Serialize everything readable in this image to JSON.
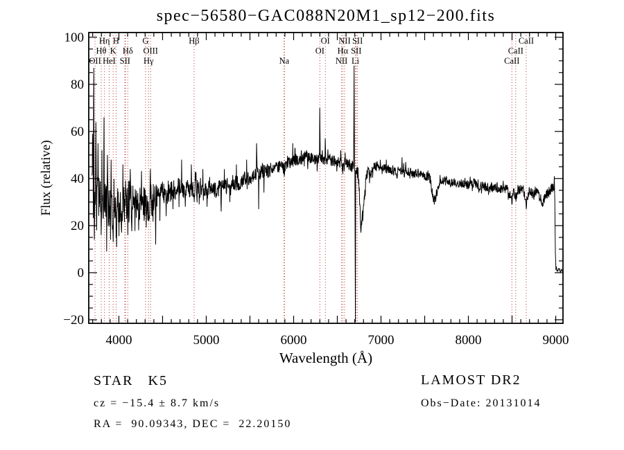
{
  "title": "spec−56580−GAC088N20M1_sp12−200.fits",
  "footer": {
    "class_label": "STAR   K5",
    "cz": "cz = −15.4 ± 8.7 km/s",
    "radec": "RA =  90.09343, DEC =  22.20150",
    "survey": "LAMOST DR2",
    "obs_date": "Obs−Date: 20131014"
  },
  "chart_data": {
    "type": "line",
    "title": "spec−56580−GAC088N20M1_sp12−200.fits",
    "xlabel": "Wavelength (Å)",
    "ylabel": "Flux (relative)",
    "xlim": [
      3655,
      9083
    ],
    "ylim": [
      -21.5,
      102
    ],
    "x_labeled_ticks": [
      4000,
      5000,
      6000,
      7000,
      8000,
      9000
    ],
    "x_tick_labels": [
      "4000",
      "5000",
      "6000",
      "7000",
      "8000",
      "9000"
    ],
    "y_labeled_ticks": [
      -20,
      0,
      20,
      40,
      60,
      80,
      100
    ],
    "y_tick_labels": [
      "−20",
      "0",
      "20",
      "40",
      "60",
      "80",
      "100"
    ],
    "x_minor_step": 100,
    "x_major_step": 500,
    "y_minor_step": 5,
    "y_major_step": 20,
    "grid": false,
    "legend": false,
    "curve_color": "#000000",
    "line_marker_color": "#b22222",
    "spectral_lines": {
      "dotted_wavelengths": [
        3727,
        3798,
        3835,
        3889,
        3934,
        3968,
        4068,
        4076,
        4102,
        4305,
        4340,
        4363,
        4861,
        5890,
        5896,
        6300,
        6363,
        6548,
        6563,
        6583,
        6707,
        6716,
        6731,
        8498,
        8542,
        8662
      ],
      "labels": [
        {
          "text": "Hη",
          "row": 1,
          "wavelength": 3835
        },
        {
          "text": "H",
          "row": 1,
          "wavelength": 3968
        },
        {
          "text": "G",
          "row": 1,
          "wavelength": 4305
        },
        {
          "text": "Hβ",
          "row": 1,
          "wavelength": 4861
        },
        {
          "text": "OI",
          "row": 1,
          "wavelength": 6363
        },
        {
          "text": "NII",
          "row": 1,
          "wavelength": 6583
        },
        {
          "text": "SII",
          "row": 1,
          "wavelength": 6731
        },
        {
          "text": "CaII",
          "row": 1,
          "wavelength": 8662
        },
        {
          "text": "Hθ",
          "row": 2,
          "wavelength": 3798
        },
        {
          "text": "K",
          "row": 2,
          "wavelength": 3934
        },
        {
          "text": "Hδ",
          "row": 2,
          "wavelength": 4102
        },
        {
          "text": "OIII",
          "row": 2,
          "wavelength": 4363
        },
        {
          "text": "OI",
          "row": 2,
          "wavelength": 6300
        },
        {
          "text": "Hα",
          "row": 2,
          "wavelength": 6563
        },
        {
          "text": "SII",
          "row": 2,
          "wavelength": 6716
        },
        {
          "text": "CaII",
          "row": 2,
          "wavelength": 8542
        },
        {
          "text": "OII",
          "row": 3,
          "wavelength": 3727
        },
        {
          "text": "HeI",
          "row": 3,
          "wavelength": 3889
        },
        {
          "text": "SII",
          "row": 3,
          "wavelength": 4070
        },
        {
          "text": "Hγ",
          "row": 3,
          "wavelength": 4340
        },
        {
          "text": "Na",
          "row": 3,
          "wavelength": 5892
        },
        {
          "text": "NII",
          "row": 3,
          "wavelength": 6548
        },
        {
          "text": "Li",
          "row": 3,
          "wavelength": 6707
        },
        {
          "text": "CaII",
          "row": 3,
          "wavelength": 8498
        }
      ]
    },
    "spectrum": {
      "seed": 20131014,
      "step": 3,
      "wavelength_start": 3692,
      "wavelength_end": 9078,
      "continuum": [
        [
          3692,
          46
        ],
        [
          3700,
          36
        ],
        [
          3715,
          32
        ],
        [
          3730,
          31
        ],
        [
          3750,
          30
        ],
        [
          3775,
          29
        ],
        [
          3800,
          29
        ],
        [
          3830,
          29
        ],
        [
          3860,
          28
        ],
        [
          3890,
          28
        ],
        [
          3920,
          27
        ],
        [
          3950,
          27
        ],
        [
          3980,
          28
        ],
        [
          4010,
          29
        ],
        [
          4040,
          28
        ],
        [
          4070,
          27
        ],
        [
          4100,
          27
        ],
        [
          4130,
          30
        ],
        [
          4160,
          31
        ],
        [
          4190,
          29
        ],
        [
          4220,
          28
        ],
        [
          4250,
          30
        ],
        [
          4280,
          30
        ],
        [
          4310,
          29
        ],
        [
          4340,
          29
        ],
        [
          4370,
          31
        ],
        [
          4400,
          32
        ],
        [
          4440,
          33
        ],
        [
          4480,
          34
        ],
        [
          4520,
          34
        ],
        [
          4560,
          34
        ],
        [
          4600,
          35
        ],
        [
          4650,
          36
        ],
        [
          4700,
          36
        ],
        [
          4750,
          35
        ],
        [
          4800,
          36
        ],
        [
          4861,
          36
        ],
        [
          4900,
          36
        ],
        [
          4950,
          35
        ],
        [
          5000,
          36
        ],
        [
          5050,
          36
        ],
        [
          5100,
          35
        ],
        [
          5150,
          36
        ],
        [
          5200,
          36
        ],
        [
          5250,
          37
        ],
        [
          5300,
          38
        ],
        [
          5350,
          38
        ],
        [
          5400,
          39
        ],
        [
          5450,
          40
        ],
        [
          5500,
          40
        ],
        [
          5550,
          41
        ],
        [
          5600,
          42
        ],
        [
          5650,
          43
        ],
        [
          5700,
          43
        ],
        [
          5750,
          44
        ],
        [
          5800,
          45
        ],
        [
          5850,
          45
        ],
        [
          5895,
          44
        ],
        [
          5920,
          46
        ],
        [
          5960,
          47
        ],
        [
          6000,
          48
        ],
        [
          6060,
          48
        ],
        [
          6120,
          49
        ],
        [
          6180,
          49
        ],
        [
          6240,
          48
        ],
        [
          6300,
          49
        ],
        [
          6360,
          48
        ],
        [
          6420,
          48
        ],
        [
          6480,
          47
        ],
        [
          6540,
          47
        ],
        [
          6570,
          45
        ],
        [
          6600,
          46
        ],
        [
          6640,
          46
        ],
        [
          6675,
          45
        ],
        [
          6740,
          42
        ],
        [
          6760,
          28
        ],
        [
          6778,
          20
        ],
        [
          6800,
          28
        ],
        [
          6825,
          38
        ],
        [
          6850,
          43
        ],
        [
          6875,
          42
        ],
        [
          6900,
          44
        ],
        [
          6930,
          45
        ],
        [
          6970,
          45
        ],
        [
          7010,
          45
        ],
        [
          7060,
          44
        ],
        [
          7110,
          44
        ],
        [
          7160,
          43
        ],
        [
          7210,
          43
        ],
        [
          7260,
          44
        ],
        [
          7310,
          43
        ],
        [
          7360,
          42
        ],
        [
          7410,
          42
        ],
        [
          7460,
          42
        ],
        [
          7510,
          41
        ],
        [
          7560,
          40
        ],
        [
          7590,
          34
        ],
        [
          7610,
          31
        ],
        [
          7630,
          33
        ],
        [
          7655,
          37
        ],
        [
          7680,
          40
        ],
        [
          7710,
          39
        ],
        [
          7760,
          39
        ],
        [
          7810,
          38
        ],
        [
          7860,
          38
        ],
        [
          7910,
          38
        ],
        [
          7960,
          38
        ],
        [
          8010,
          37
        ],
        [
          8060,
          38
        ],
        [
          8110,
          37
        ],
        [
          8160,
          37
        ],
        [
          8210,
          36
        ],
        [
          8260,
          36
        ],
        [
          8310,
          36
        ],
        [
          8360,
          36
        ],
        [
          8410,
          36
        ],
        [
          8450,
          35
        ],
        [
          8480,
          33
        ],
        [
          8498,
          31
        ],
        [
          8515,
          35
        ],
        [
          8542,
          32
        ],
        [
          8565,
          35
        ],
        [
          8600,
          36
        ],
        [
          8630,
          35
        ],
        [
          8662,
          29
        ],
        [
          8685,
          34
        ],
        [
          8710,
          35
        ],
        [
          8740,
          33
        ],
        [
          8770,
          35
        ],
        [
          8800,
          33
        ],
        [
          8830,
          31
        ],
        [
          8855,
          30
        ],
        [
          8885,
          33
        ],
        [
          8915,
          34
        ],
        [
          8945,
          35
        ],
        [
          8965,
          36
        ],
        [
          8980,
          37
        ],
        [
          8988,
          36
        ],
        [
          8994,
          12
        ],
        [
          9002,
          2
        ],
        [
          9020,
          1
        ],
        [
          9078,
          1
        ]
      ],
      "noise_segments": [
        [
          3692,
          3705,
          24
        ],
        [
          3705,
          3780,
          13
        ],
        [
          3780,
          3900,
          10
        ],
        [
          3900,
          4100,
          9
        ],
        [
          4100,
          4400,
          7
        ],
        [
          4400,
          4700,
          5
        ],
        [
          4700,
          5000,
          4
        ],
        [
          5000,
          5400,
          3.5
        ],
        [
          5400,
          5800,
          3
        ],
        [
          5800,
          6280,
          2.5
        ],
        [
          6280,
          6660,
          2.5
        ],
        [
          6660,
          6680,
          3
        ],
        [
          6680,
          6720,
          1
        ],
        [
          6720,
          6840,
          3
        ],
        [
          6840,
          7550,
          2
        ],
        [
          7550,
          7700,
          2.2
        ],
        [
          7700,
          8400,
          2
        ],
        [
          8400,
          9005,
          2.2
        ],
        [
          9005,
          9078,
          0.8
        ]
      ],
      "emission_spikes": [
        [
          3712,
          87,
          6
        ],
        [
          3736,
          64,
          5
        ],
        [
          3762,
          55,
          4
        ],
        [
          3806,
          52,
          4
        ],
        [
          3829,
          66,
          4
        ],
        [
          3870,
          50,
          4
        ],
        [
          3910,
          48,
          4
        ],
        [
          4046,
          46,
          4
        ],
        [
          4130,
          44,
          4
        ],
        [
          4360,
          44,
          4
        ],
        [
          4718,
          48,
          4
        ],
        [
          4830,
          46,
          3
        ],
        [
          4962,
          44,
          3
        ],
        [
          5208,
          44,
          3
        ],
        [
          5345,
          46,
          3
        ],
        [
          5462,
          48,
          3
        ],
        [
          5577,
          55,
          4
        ],
        [
          5700,
          46,
          3
        ],
        [
          5990,
          55,
          3
        ],
        [
          6016,
          53,
          3
        ],
        [
          6090,
          52,
          3
        ],
        [
          6145,
          52,
          3
        ],
        [
          6300,
          70,
          4
        ],
        [
          6330,
          52,
          3
        ],
        [
          6363,
          57,
          3
        ],
        [
          6540,
          52,
          3
        ],
        [
          6590,
          51,
          3
        ],
        [
          6692,
          88,
          5
        ],
        [
          7060,
          48,
          3
        ],
        [
          7240,
          49,
          3
        ],
        [
          7282,
          47,
          3
        ],
        [
          8400,
          39,
          3
        ],
        [
          8983,
          41,
          3
        ]
      ],
      "absorption_dips": [
        [
          3718,
          14,
          5
        ],
        [
          3745,
          18,
          4
        ],
        [
          3797,
          16,
          4
        ],
        [
          3860,
          9,
          3
        ],
        [
          3905,
          14,
          3
        ],
        [
          3934,
          13,
          5
        ],
        [
          3969,
          15,
          4
        ],
        [
          4030,
          17,
          3
        ],
        [
          4102,
          16,
          5
        ],
        [
          4145,
          20,
          4
        ],
        [
          4227,
          18,
          5
        ],
        [
          4290,
          22,
          4
        ],
        [
          4340,
          23,
          4
        ],
        [
          4383,
          24,
          4
        ],
        [
          4420,
          12,
          4
        ],
        [
          4470,
          22,
          3
        ],
        [
          4540,
          24,
          3
        ],
        [
          4620,
          27,
          3
        ],
        [
          4760,
          28,
          3
        ],
        [
          4861,
          30,
          4
        ],
        [
          4920,
          29,
          3
        ],
        [
          5010,
          28,
          3
        ],
        [
          5170,
          26,
          5
        ],
        [
          5270,
          30,
          4
        ],
        [
          5600,
          27,
          3
        ],
        [
          5660,
          34,
          3
        ],
        [
          5893,
          41,
          5
        ],
        [
          6162,
          44,
          3
        ],
        [
          6270,
          43,
          3
        ],
        [
          6495,
          43,
          3
        ],
        [
          6563,
          42,
          4
        ],
        [
          6706,
          -21,
          4
        ],
        [
          6770,
          17,
          8
        ],
        [
          6870,
          38,
          4
        ],
        [
          7185,
          40,
          5
        ],
        [
          7330,
          40,
          3
        ],
        [
          7600,
          30,
          6
        ],
        [
          7625,
          30,
          5
        ],
        [
          7665,
          36,
          3
        ],
        [
          8230,
          33,
          4
        ],
        [
          8498,
          29,
          4
        ],
        [
          8542,
          31,
          4
        ],
        [
          8662,
          27,
          4
        ],
        [
          8750,
          31,
          3
        ],
        [
          8850,
          28,
          4
        ],
        [
          8920,
          32,
          3
        ]
      ]
    }
  }
}
